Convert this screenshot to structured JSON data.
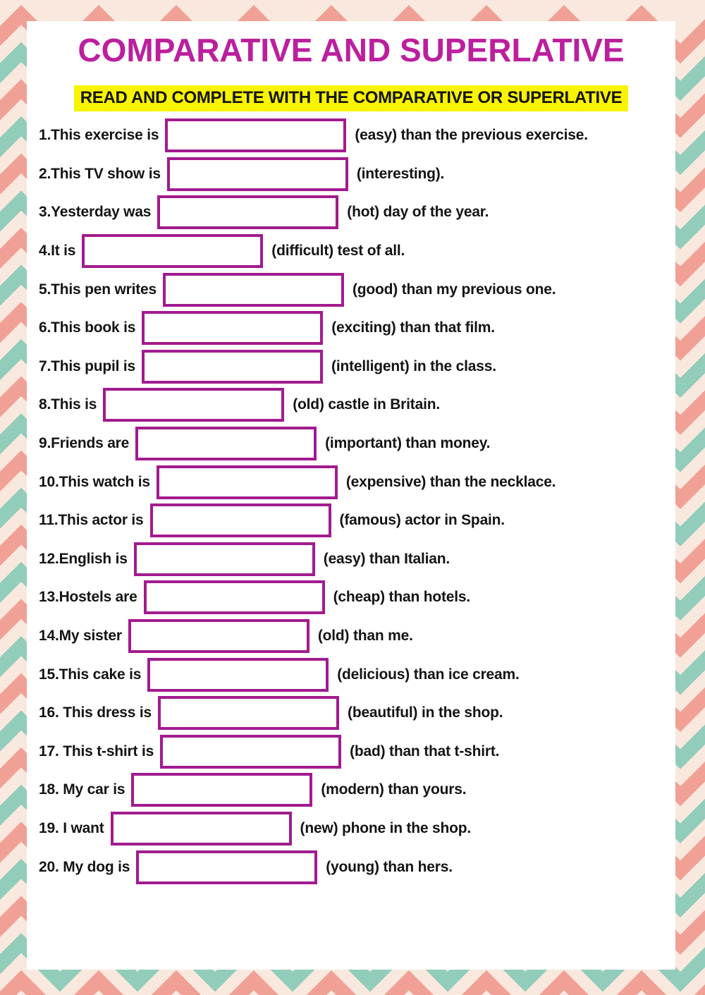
{
  "worksheet": {
    "title": "COMPARATIVE AND SUPERLATIVE",
    "instruction": "READ AND COMPLETE WITH THE COMPARATIVE OR SUPERLATIVE",
    "items": [
      {
        "number": 1,
        "before": "1.This exercise is",
        "after": "(easy) than the previous exercise.",
        "value": ""
      },
      {
        "number": 2,
        "before": "2.This TV show is",
        "after": "(interesting).",
        "value": ""
      },
      {
        "number": 3,
        "before": "3.Yesterday was",
        "after": "(hot) day of the year.",
        "value": ""
      },
      {
        "number": 4,
        "before": "4.It is",
        "after": "(difficult) test of all.",
        "value": ""
      },
      {
        "number": 5,
        "before": "5.This pen writes",
        "after": "(good) than my previous one.",
        "value": ""
      },
      {
        "number": 6,
        "before": "6.This book is",
        "after": "(exciting) than that film.",
        "value": ""
      },
      {
        "number": 7,
        "before": "7.This pupil is",
        "after": "(intelligent) in the class.",
        "value": ""
      },
      {
        "number": 8,
        "before": "8.This is",
        "after": "(old) castle in Britain.",
        "value": ""
      },
      {
        "number": 9,
        "before": "9.Friends are",
        "after": "(important) than money.",
        "value": ""
      },
      {
        "number": 10,
        "before": "10.This watch is",
        "after": "(expensive) than the necklace.",
        "value": ""
      },
      {
        "number": 11,
        "before": "11.This actor is",
        "after": "(famous) actor in Spain.",
        "value": ""
      },
      {
        "number": 12,
        "before": "12.English is",
        "after": "(easy) than Italian.",
        "value": ""
      },
      {
        "number": 13,
        "before": "13.Hostels are",
        "after": "(cheap) than hotels.",
        "value": ""
      },
      {
        "number": 14,
        "before": "14.My sister",
        "after": "(old) than me.",
        "value": ""
      },
      {
        "number": 15,
        "before": "15.This cake is",
        "after": "(delicious) than ice cream.",
        "value": ""
      },
      {
        "number": 16,
        "before": "16. This dress is",
        "after": "(beautiful) in the shop.",
        "value": ""
      },
      {
        "number": 17,
        "before": "17. This t-shirt is",
        "after": "(bad) than that t-shirt.",
        "value": ""
      },
      {
        "number": 18,
        "before": "18. My car is",
        "after": "(modern) than yours.",
        "value": ""
      },
      {
        "number": 19,
        "before": "19. I want",
        "after": "(new) phone in the shop.",
        "value": ""
      },
      {
        "number": 20,
        "before": "20. My dog is",
        "after": "(young) than hers.",
        "value": ""
      }
    ]
  },
  "colors": {
    "title_magenta": "#bc1f9e",
    "highlight_yellow": "#f8f400",
    "box_border_magenta": "#a21b8f",
    "text_black": "#141414",
    "background_cream": "#f9e8de",
    "chevron_coral": "#f1a095",
    "chevron_teal": "#92ccba",
    "paper_white": "#ffffff"
  }
}
